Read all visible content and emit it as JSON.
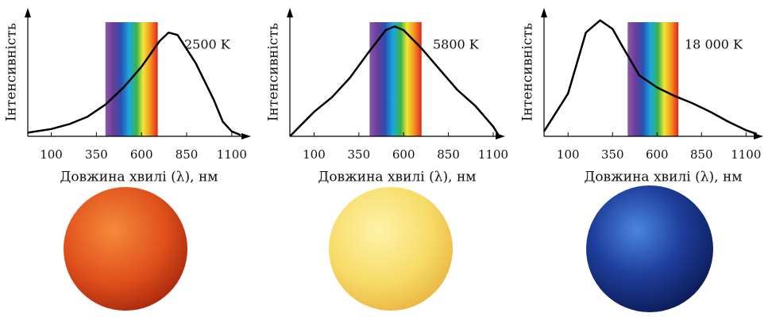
{
  "chart_data": [
    {
      "type": "line",
      "y_label": "Інтенсивність",
      "x_label": "Довжина хвилі (λ), нм",
      "annotation": "2500 K",
      "x": [
        -30,
        100,
        200,
        300,
        400,
        500,
        600,
        700,
        750,
        800,
        900,
        1000,
        1050,
        1100,
        1150
      ],
      "series": [
        {
          "color": "#000000",
          "values": [
            0.03,
            0.06,
            0.1,
            0.16,
            0.26,
            0.4,
            0.57,
            0.78,
            0.85,
            0.83,
            0.6,
            0.3,
            0.12,
            0.04,
            0.01
          ]
        }
      ],
      "xlim": [
        -30,
        1180
      ],
      "ylim": [
        0,
        1
      ],
      "xticks": [
        100,
        350,
        600,
        850,
        1100
      ],
      "spectrum": [
        400,
        690
      ]
    },
    {
      "type": "line",
      "y_label": "Інтенсивність",
      "x_label": "Довжина хвилі (λ), нм",
      "annotation": "5800 K",
      "x": [
        -35,
        100,
        200,
        300,
        400,
        500,
        550,
        600,
        700,
        800,
        900,
        1000,
        1100,
        1130
      ],
      "series": [
        {
          "color": "#000000",
          "values": [
            0.0,
            0.2,
            0.32,
            0.48,
            0.68,
            0.87,
            0.9,
            0.87,
            0.72,
            0.55,
            0.38,
            0.25,
            0.08,
            0.01
          ]
        }
      ],
      "xlim": [
        -35,
        1140
      ],
      "ylim": [
        0,
        1
      ],
      "xticks": [
        100,
        350,
        600,
        850,
        1100
      ],
      "spectrum": [
        410,
        700
      ]
    },
    {
      "type": "line",
      "y_label": "Інтенсивність",
      "x_label": "Довжина хвилі (λ), нм",
      "annotation": "18 000 K",
      "x": [
        -35,
        100,
        200,
        280,
        350,
        400,
        500,
        600,
        700,
        800,
        900,
        1000,
        1100,
        1160
      ],
      "series": [
        {
          "color": "#000000",
          "values": [
            0.04,
            0.35,
            0.85,
            0.95,
            0.88,
            0.75,
            0.5,
            0.4,
            0.33,
            0.27,
            0.2,
            0.12,
            0.05,
            0.02
          ]
        }
      ],
      "xlim": [
        -35,
        1170
      ],
      "ylim": [
        0,
        1
      ],
      "xticks": [
        100,
        350,
        600,
        850,
        1100
      ],
      "spectrum": [
        435,
        720
      ]
    }
  ]
}
